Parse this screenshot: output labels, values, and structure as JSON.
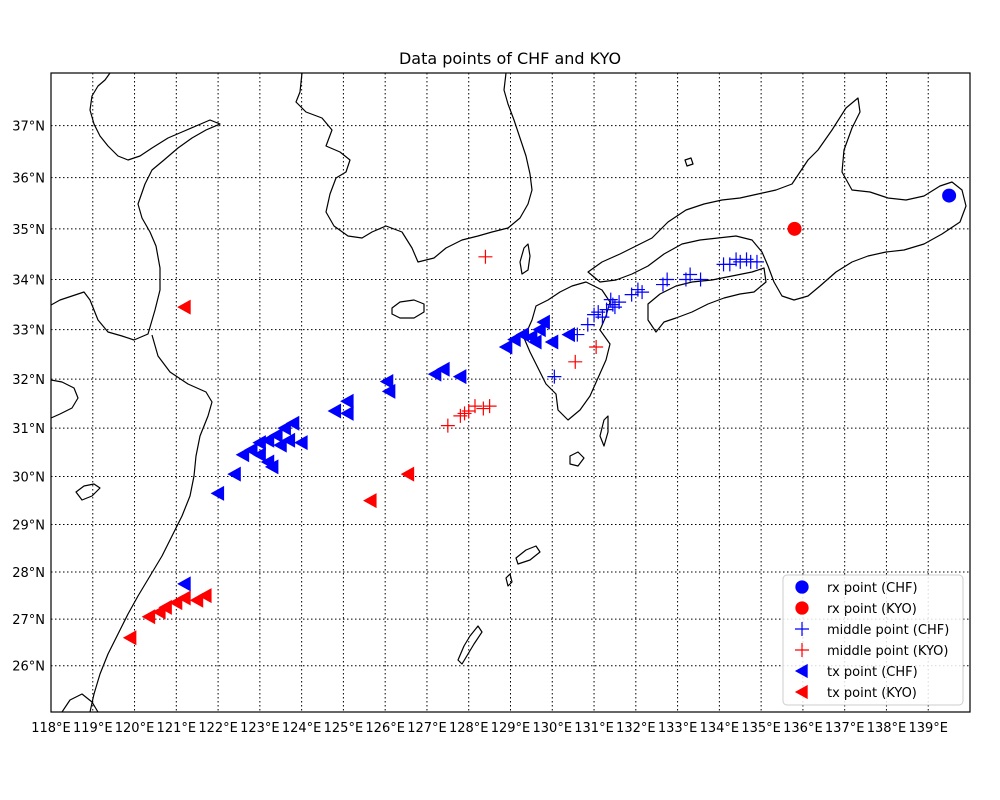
{
  "title": "Data points of CHF and KYO",
  "x_tick_labels": [
    "118°E",
    "119°E",
    "120°E",
    "121°E",
    "122°E",
    "123°E",
    "124°E",
    "125°E",
    "126°E",
    "127°E",
    "128°E",
    "129°E",
    "130°E",
    "131°E",
    "132°E",
    "133°E",
    "134°E",
    "135°E",
    "136°E",
    "137°E",
    "138°E",
    "139°E"
  ],
  "y_tick_labels": [
    "26°N",
    "27°N",
    "28°N",
    "29°N",
    "30°N",
    "31°N",
    "32°N",
    "33°N",
    "34°N",
    "35°N",
    "36°N",
    "37°N"
  ],
  "colors": {
    "chf": "#0000ff",
    "kyo": "#ff0000"
  },
  "legend": [
    {
      "label": "rx point (CHF)",
      "marker": "circle",
      "color": "#0000ff"
    },
    {
      "label": "rx point (KYO)",
      "marker": "circle",
      "color": "#ff0000"
    },
    {
      "label": "middle point (CHF)",
      "marker": "plus",
      "color": "#0000ff"
    },
    {
      "label": "middle point (KYO)",
      "marker": "plus",
      "color": "#ff0000"
    },
    {
      "label": "tx point (CHF)",
      "marker": "triangle-left",
      "color": "#0000ff"
    },
    {
      "label": "tx point (KYO)",
      "marker": "triangle-left",
      "color": "#ff0000"
    }
  ],
  "chart_data": {
    "type": "scatter",
    "projection": "mercator",
    "lon_range": [
      118,
      140
    ],
    "lat_range": [
      25,
      38
    ],
    "grid": true,
    "legend_position": "lower-right",
    "series": [
      {
        "name": "rx point (CHF)",
        "marker": "circle",
        "points": [
          [
            139.5,
            35.65
          ]
        ]
      },
      {
        "name": "rx point (KYO)",
        "marker": "circle",
        "points": [
          [
            135.8,
            35.0
          ]
        ]
      },
      {
        "name": "middle point (CHF)",
        "marker": "plus",
        "points": [
          [
            130.05,
            32.05
          ],
          [
            130.6,
            32.9
          ],
          [
            130.85,
            33.1
          ],
          [
            131.0,
            33.3
          ],
          [
            131.1,
            33.35
          ],
          [
            131.3,
            33.4
          ],
          [
            131.45,
            33.5
          ],
          [
            131.6,
            33.55
          ],
          [
            131.2,
            33.25
          ],
          [
            131.4,
            33.6
          ],
          [
            131.5,
            33.45
          ],
          [
            131.9,
            33.7
          ],
          [
            132.05,
            33.8
          ],
          [
            132.15,
            33.75
          ],
          [
            132.65,
            33.9
          ],
          [
            132.75,
            34.0
          ],
          [
            133.2,
            34.0
          ],
          [
            133.3,
            34.1
          ],
          [
            133.55,
            34.0
          ],
          [
            134.1,
            34.3
          ],
          [
            134.25,
            34.3
          ],
          [
            134.4,
            34.4
          ],
          [
            134.5,
            34.35
          ],
          [
            134.65,
            34.4
          ],
          [
            134.75,
            34.35
          ],
          [
            134.9,
            34.35
          ]
        ]
      },
      {
        "name": "middle point (KYO)",
        "marker": "plus",
        "points": [
          [
            128.4,
            34.45
          ],
          [
            127.5,
            31.05
          ],
          [
            127.8,
            31.25
          ],
          [
            127.9,
            31.3
          ],
          [
            128.0,
            31.35
          ],
          [
            128.15,
            31.45
          ],
          [
            128.35,
            31.4
          ],
          [
            128.5,
            31.45
          ],
          [
            130.55,
            32.35
          ],
          [
            131.05,
            32.65
          ]
        ]
      },
      {
        "name": "tx point (CHF)",
        "marker": "triangle-left",
        "points": [
          [
            122.0,
            29.65
          ],
          [
            122.4,
            30.05
          ],
          [
            122.6,
            30.45
          ],
          [
            122.8,
            30.55
          ],
          [
            123.0,
            30.45
          ],
          [
            123.2,
            30.3
          ],
          [
            123.0,
            30.7
          ],
          [
            123.2,
            30.75
          ],
          [
            123.4,
            30.85
          ],
          [
            123.6,
            31.0
          ],
          [
            123.8,
            31.1
          ],
          [
            123.5,
            30.65
          ],
          [
            123.7,
            30.75
          ],
          [
            124.0,
            30.7
          ],
          [
            123.3,
            30.2
          ],
          [
            124.8,
            31.35
          ],
          [
            125.1,
            31.55
          ],
          [
            125.1,
            31.3
          ],
          [
            126.05,
            31.95
          ],
          [
            126.1,
            31.75
          ],
          [
            127.2,
            32.1
          ],
          [
            127.4,
            32.2
          ],
          [
            127.8,
            32.05
          ],
          [
            128.9,
            32.65
          ],
          [
            129.1,
            32.8
          ],
          [
            129.3,
            32.9
          ],
          [
            129.5,
            32.85
          ],
          [
            129.7,
            33.0
          ],
          [
            129.8,
            33.15
          ],
          [
            129.6,
            32.75
          ],
          [
            130.0,
            32.75
          ],
          [
            130.4,
            32.9
          ],
          [
            121.2,
            27.75
          ]
        ]
      },
      {
        "name": "tx point (KYO)",
        "marker": "triangle-left",
        "points": [
          [
            121.2,
            33.45
          ],
          [
            119.9,
            26.6
          ],
          [
            120.35,
            27.05
          ],
          [
            120.6,
            27.15
          ],
          [
            120.75,
            27.25
          ],
          [
            121.0,
            27.35
          ],
          [
            121.2,
            27.45
          ],
          [
            121.5,
            27.4
          ],
          [
            121.7,
            27.5
          ],
          [
            125.65,
            29.5
          ],
          [
            126.55,
            30.05
          ]
        ]
      }
    ]
  }
}
